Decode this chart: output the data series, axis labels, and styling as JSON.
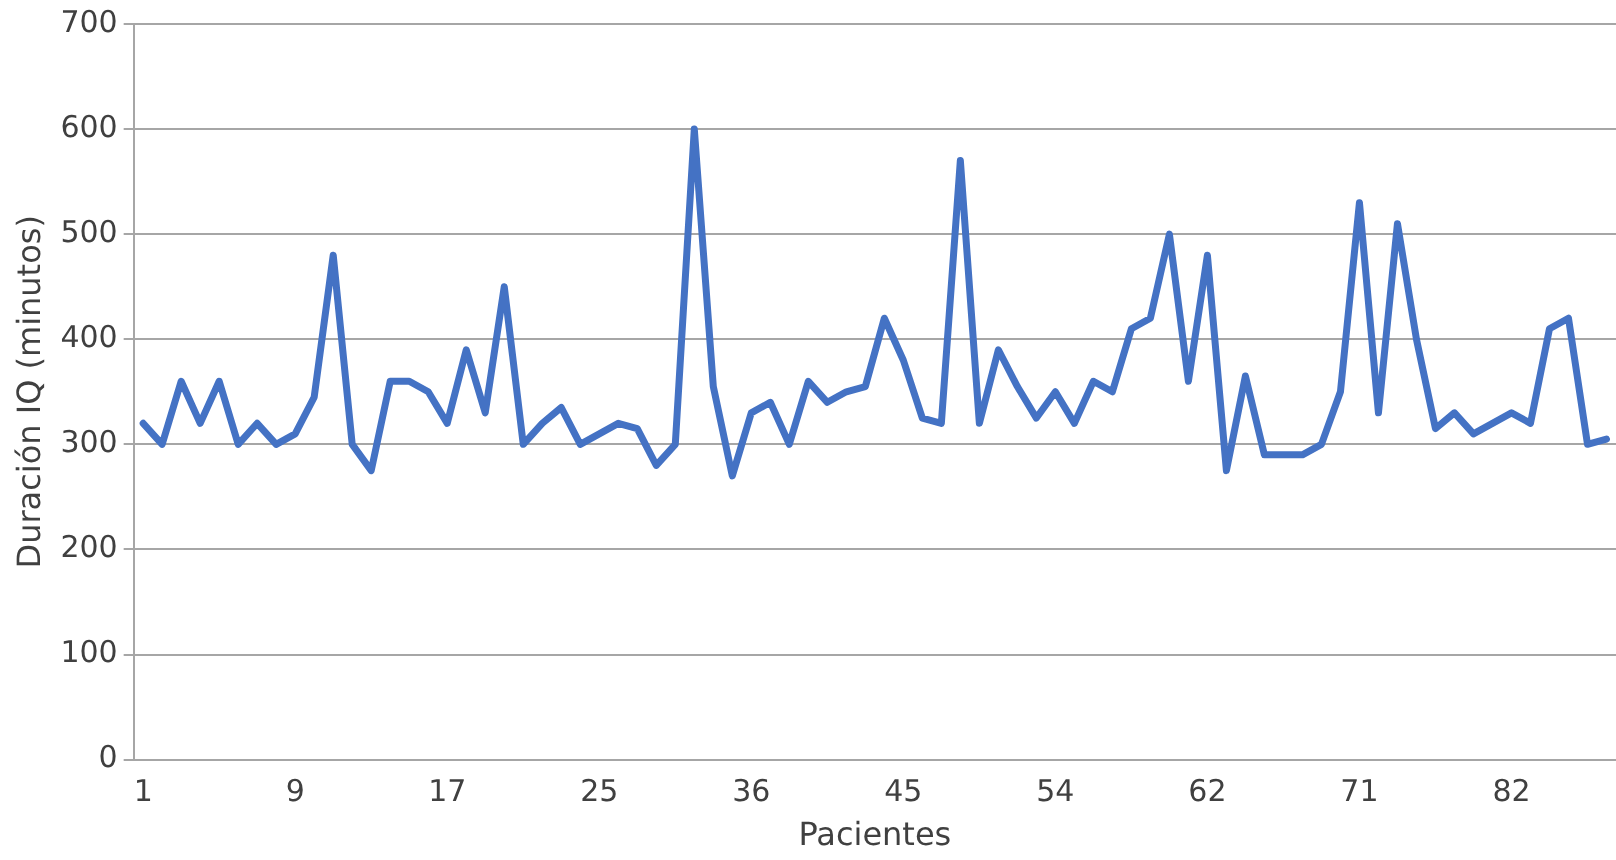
{
  "chart_data": {
    "type": "line",
    "xlabel": "Pacientes",
    "ylabel": "Duración IQ (minutos)",
    "categories": [
      "1",
      null,
      null,
      null,
      null,
      null,
      null,
      null,
      "9",
      null,
      null,
      null,
      null,
      null,
      null,
      null,
      "17",
      null,
      null,
      null,
      null,
      null,
      null,
      null,
      "25",
      null,
      null,
      null,
      null,
      null,
      null,
      null,
      "36",
      null,
      null,
      null,
      null,
      null,
      null,
      null,
      "45",
      null,
      null,
      null,
      null,
      null,
      null,
      null,
      "54",
      null,
      null,
      null,
      null,
      null,
      null,
      null,
      "62",
      null,
      null,
      null,
      null,
      null,
      null,
      null,
      "71",
      null,
      null,
      null,
      null,
      null,
      null,
      null,
      "82",
      null,
      null,
      null,
      null,
      null
    ],
    "series": [
      {
        "color": "#4472c4",
        "values": [
          320,
          300,
          360,
          320,
          360,
          300,
          320,
          300,
          310,
          345,
          480,
          300,
          275,
          360,
          360,
          350,
          320,
          390,
          330,
          450,
          300,
          320,
          335,
          300,
          310,
          320,
          315,
          280,
          300,
          600,
          355,
          270,
          330,
          340,
          300,
          360,
          340,
          350,
          355,
          420,
          380,
          325,
          320,
          570,
          320,
          390,
          355,
          325,
          350,
          320,
          360,
          350,
          410,
          420,
          500,
          360,
          480,
          275,
          365,
          290,
          290,
          290,
          300,
          350,
          530,
          330,
          510,
          400,
          315,
          330,
          310,
          320,
          330,
          320,
          410,
          420,
          300,
          305
        ]
      }
    ],
    "ylim": [
      0,
      700
    ],
    "yticks": [
      0,
      100,
      200,
      300,
      400,
      500,
      600,
      700
    ],
    "grid": "y",
    "legend": false,
    "marker": "none",
    "line_style": "solid"
  }
}
